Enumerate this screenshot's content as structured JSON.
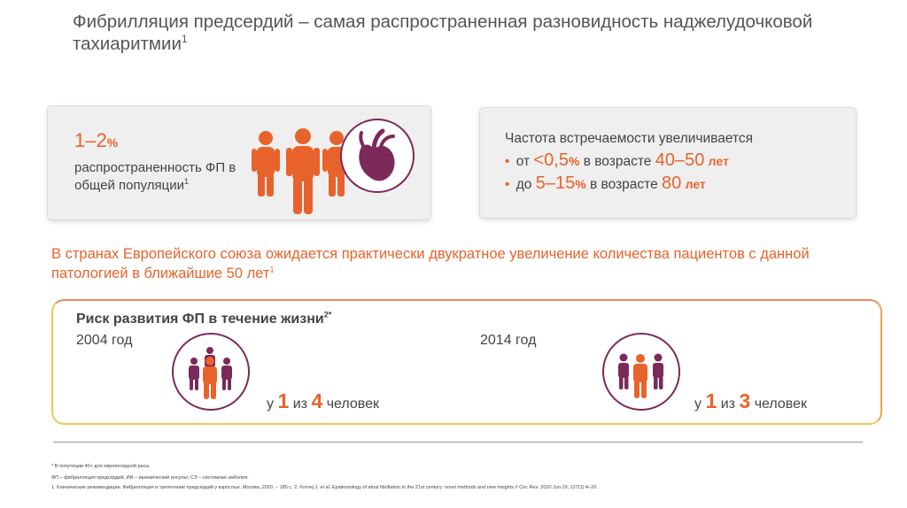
{
  "title": {
    "text": "Фибрилляция предсердий – самая распространенная разновидность наджелудочковой тахиаритмии",
    "ref": "1"
  },
  "prevalence": {
    "value": "1–2",
    "percent": "%",
    "label": "распространенность ФП в общей популяции",
    "ref": "1",
    "icons": [
      "person-icon",
      "person-icon",
      "person-icon",
      "heart-icon"
    ]
  },
  "frequency": {
    "heading": "Частота встречаемости увеличивается",
    "items": [
      {
        "bullet": "•",
        "pre": "от",
        "value": "<0,5",
        "pct": "%",
        "mid": "в возрасте",
        "age": "40–50",
        "unit": "лет"
      },
      {
        "bullet": "•",
        "pre": "до",
        "value": "5–15",
        "pct": "%",
        "mid": "в возрасте",
        "age": "80",
        "unit": "лет"
      }
    ]
  },
  "eu_forecast": {
    "text": "В странах Европейского союза ожидается практически двукратное увеличение количества пациентов с данной патологией в ближайшие 50 лет",
    "ref": "1"
  },
  "risk": {
    "title": "Риск развития ФП в течение жизни",
    "ref": "2*",
    "groups": [
      {
        "year": "2004 год",
        "pre": "у",
        "a": "1",
        "mid": "из",
        "b": "4",
        "post": "человек"
      },
      {
        "year": "2014 год",
        "pre": "у",
        "a": "1",
        "mid": "из",
        "b": "3",
        "post": "человек"
      }
    ]
  },
  "footnotes": [
    "* В популяции 40+ для европеоидной расы.",
    "ФП – фибрилляция предсердий, ИИ – ишемический инсульт, СЭ – системная эмболия.",
    "1. Клинические рекомендации. Фибрилляция и трепетание предсердий у взрослых. Москва, 2020. – 185 с. 2. Kornej J. et al. Epidemiology of atrial fibrillation in the 21st century: novel methods and new insights // Circ Res. 2020 Jun 19; 127(1):4–20."
  ],
  "colors": {
    "accent": "#e8632b",
    "plum": "#7b2a5a",
    "text": "#444444",
    "card": "#efefef"
  }
}
